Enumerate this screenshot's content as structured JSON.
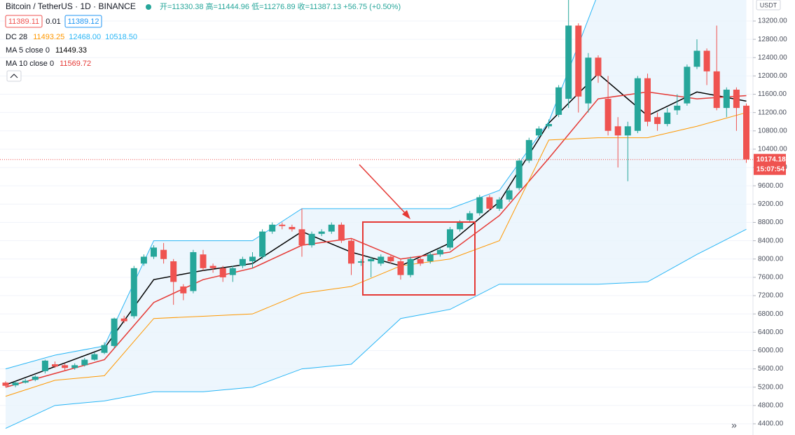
{
  "chart_data": {
    "type": "candlestick",
    "title": "Bitcoin / TetherUS · 1D · BINANCE",
    "ohlc_text": "开=11330.38 高=11444.96 低=11276.89 收=11387.13 +56.75 (+0.50%)",
    "price_boxes": [
      11389.11,
      0.01,
      11389.12
    ],
    "currency": "USDT",
    "last_price": 10174.18,
    "countdown": "15:07:54",
    "up_color": "#26a69a",
    "down_color": "#ef5350",
    "ylim": [
      4155,
      13659
    ],
    "yticks": [
      {
        "value": 4400,
        "label": "4400.00"
      },
      {
        "value": 4800,
        "label": "4800.00"
      },
      {
        "value": 5200,
        "label": "5200.00"
      },
      {
        "value": 5600,
        "label": "5600.00"
      },
      {
        "value": 6000,
        "label": "6000.00"
      },
      {
        "value": 6400,
        "label": "6400.00"
      },
      {
        "value": 6800,
        "label": "6800.00"
      },
      {
        "value": 7200,
        "label": "7200.00"
      },
      {
        "value": 7600,
        "label": "7600.00"
      },
      {
        "value": 8000,
        "label": "8000.00"
      },
      {
        "value": 8400,
        "label": "8400.00"
      },
      {
        "value": 8800,
        "label": "8800.00"
      },
      {
        "value": 9200,
        "label": "9200.00"
      },
      {
        "value": 9600,
        "label": "9600.00"
      },
      {
        "value": 10000,
        "label": "10000.00"
      },
      {
        "value": 10400,
        "label": "10400.00"
      },
      {
        "value": 10800,
        "label": "10800.00"
      },
      {
        "value": 11200,
        "label": "11200.00"
      },
      {
        "value": 11600,
        "label": "11600.00"
      },
      {
        "value": 12000,
        "label": "12000.00"
      },
      {
        "value": 12400,
        "label": "12400.00"
      },
      {
        "value": 12800,
        "label": "12800.00"
      },
      {
        "value": 13200,
        "label": "13200.00"
      }
    ],
    "grid": true,
    "open": [
      5300,
      5240,
      5300,
      5360,
      5550,
      5700,
      5680,
      5620,
      5680,
      5800,
      5950,
      6100,
      6700,
      6750,
      7900,
      8050,
      8200,
      7950,
      7400,
      7300,
      8100,
      7850,
      7800,
      7650,
      7850,
      7950,
      8050,
      8600,
      8750,
      8700,
      8650,
      8300,
      8550,
      8600,
      8750,
      8400,
      7920,
      7950,
      7900,
      8050,
      7950,
      7650,
      8000,
      7950,
      8100,
      8250,
      8650,
      8850,
      9000,
      9350,
      9100,
      9300,
      9550,
      10150,
      10700,
      10900,
      11150,
      11500,
      13100,
      11400,
      12400,
      11500,
      10900,
      10700,
      10800,
      11950,
      11100,
      10950,
      11250,
      11400,
      12200,
      12550,
      12100,
      11300,
      11700,
      11350
    ],
    "high": [
      5330,
      5330,
      5380,
      5460,
      5800,
      5760,
      5720,
      5720,
      5840,
      5960,
      6180,
      6720,
      6760,
      7850,
      8100,
      8300,
      8350,
      8000,
      7450,
      8200,
      8200,
      7900,
      7850,
      7850,
      8050,
      8150,
      8650,
      8800,
      8800,
      8750,
      9100,
      8600,
      8650,
      8800,
      8800,
      8450,
      8000,
      8050,
      8100,
      8100,
      8000,
      8050,
      8050,
      8150,
      8250,
      8700,
      8850,
      9050,
      9400,
      9400,
      9350,
      9550,
      10200,
      10650,
      10900,
      11050,
      11800,
      13700,
      13150,
      12500,
      12450,
      12000,
      11100,
      11000,
      12000,
      12050,
      11200,
      11300,
      11600,
      12250,
      12800,
      12600,
      13100,
      11750,
      11750,
      11400
    ],
    "low": [
      5200,
      5200,
      5280,
      5330,
      5500,
      5620,
      5560,
      5580,
      5650,
      5780,
      5920,
      6050,
      6600,
      6700,
      7850,
      8000,
      7900,
      7000,
      7100,
      7250,
      7750,
      7700,
      7500,
      7500,
      7800,
      7800,
      8000,
      8550,
      8650,
      8600,
      8050,
      8250,
      8500,
      8550,
      8350,
      7650,
      7850,
      7600,
      7850,
      7900,
      7550,
      7600,
      7850,
      7900,
      8050,
      8200,
      8600,
      8800,
      8950,
      9050,
      9050,
      9250,
      9500,
      10100,
      10650,
      10850,
      11100,
      11300,
      11200,
      11200,
      11850,
      10700,
      10000,
      9700,
      10750,
      10900,
      10800,
      10900,
      11150,
      11350,
      12150,
      11800,
      11250,
      11100,
      10800,
      10100
    ],
    "close": [
      5230,
      5300,
      5340,
      5430,
      5780,
      5650,
      5620,
      5680,
      5800,
      5920,
      6120,
      6700,
      6640,
      7800,
      8050,
      8250,
      8000,
      7500,
      7250,
      8150,
      7800,
      7800,
      7600,
      7800,
      8000,
      8050,
      8600,
      8750,
      8720,
      8650,
      8300,
      8550,
      8600,
      8750,
      8400,
      7900,
      7950,
      8000,
      8050,
      7950,
      7650,
      8000,
      7900,
      8100,
      8200,
      8650,
      8800,
      9000,
      9350,
      9100,
      9300,
      9500,
      10150,
      10600,
      10850,
      10950,
      11750,
      13100,
      11550,
      12400,
      12000,
      10800,
      10700,
      10900,
      11950,
      11000,
      10950,
      11200,
      11350,
      12200,
      12550,
      12100,
      11300,
      11700,
      11300,
      10174.18
    ],
    "series": [
      {
        "color": "#000000",
        "x": [
          0,
          5,
          10,
          15,
          20,
          25,
          30,
          35,
          40,
          45,
          50,
          55,
          60,
          65,
          70,
          75
        ],
        "values": [
          5250,
          5650,
          6050,
          7550,
          7750,
          7900,
          8600,
          8150,
          7850,
          8350,
          9250,
          10970,
          12050,
          11130,
          11650,
          11449.33
        ]
      },
      {
        "color": "#e53935",
        "x": [
          0,
          5,
          10,
          15,
          20,
          25,
          30,
          35,
          40,
          45,
          50,
          55,
          60,
          65,
          70,
          75
        ],
        "values": [
          5200,
          5500,
          5800,
          7050,
          7550,
          7800,
          8300,
          8450,
          8000,
          8150,
          8950,
          10200,
          11500,
          11650,
          11500,
          11569.72
        ]
      },
      {
        "color": "#ff9800",
        "x": [
          0,
          5,
          10,
          15,
          20,
          25,
          30,
          35,
          40,
          45,
          50,
          55,
          60,
          65,
          70,
          75
        ],
        "values": [
          5000,
          5350,
          5450,
          6700,
          6750,
          6800,
          7250,
          7400,
          7850,
          8000,
          8400,
          10600,
          10650,
          10650,
          10900,
          11200
        ]
      },
      {
        "color": "#29b6f6",
        "x": [
          0,
          5,
          10,
          15,
          20,
          25,
          30,
          35,
          40,
          45,
          50,
          55,
          60,
          65,
          70,
          75
        ],
        "values": [
          5600,
          5900,
          6100,
          8400,
          8400,
          8400,
          9100,
          9100,
          9100,
          9100,
          9500,
          11000,
          13800,
          13800,
          13800,
          13800
        ]
      },
      {
        "color": "#29b6f6",
        "x": [
          0,
          5,
          10,
          15,
          20,
          25,
          30,
          35,
          40,
          45,
          50,
          55,
          60,
          65,
          70,
          75
        ],
        "values": [
          4300,
          4800,
          4900,
          5100,
          5100,
          5200,
          5600,
          5700,
          6700,
          6900,
          7450,
          7450,
          7450,
          7500,
          8100,
          8650
        ]
      }
    ],
    "legend": [
      {
        "label": "DC 28",
        "values": [
          11493.25,
          {
            "value": 12468,
            "label": "12468.00"
          },
          {
            "value": 10518.5,
            "label": "10518.50"
          }
        ],
        "colors": [
          "#ff9800",
          "#29b6f6",
          "#29b6f6"
        ]
      },
      {
        "label": "MA 5 close 0",
        "values": [
          11449.33
        ],
        "colors": [
          "#000000"
        ]
      },
      {
        "label": "MA 10 close 0",
        "values": [
          11569.72
        ],
        "colors": [
          "#e53935"
        ]
      }
    ]
  }
}
